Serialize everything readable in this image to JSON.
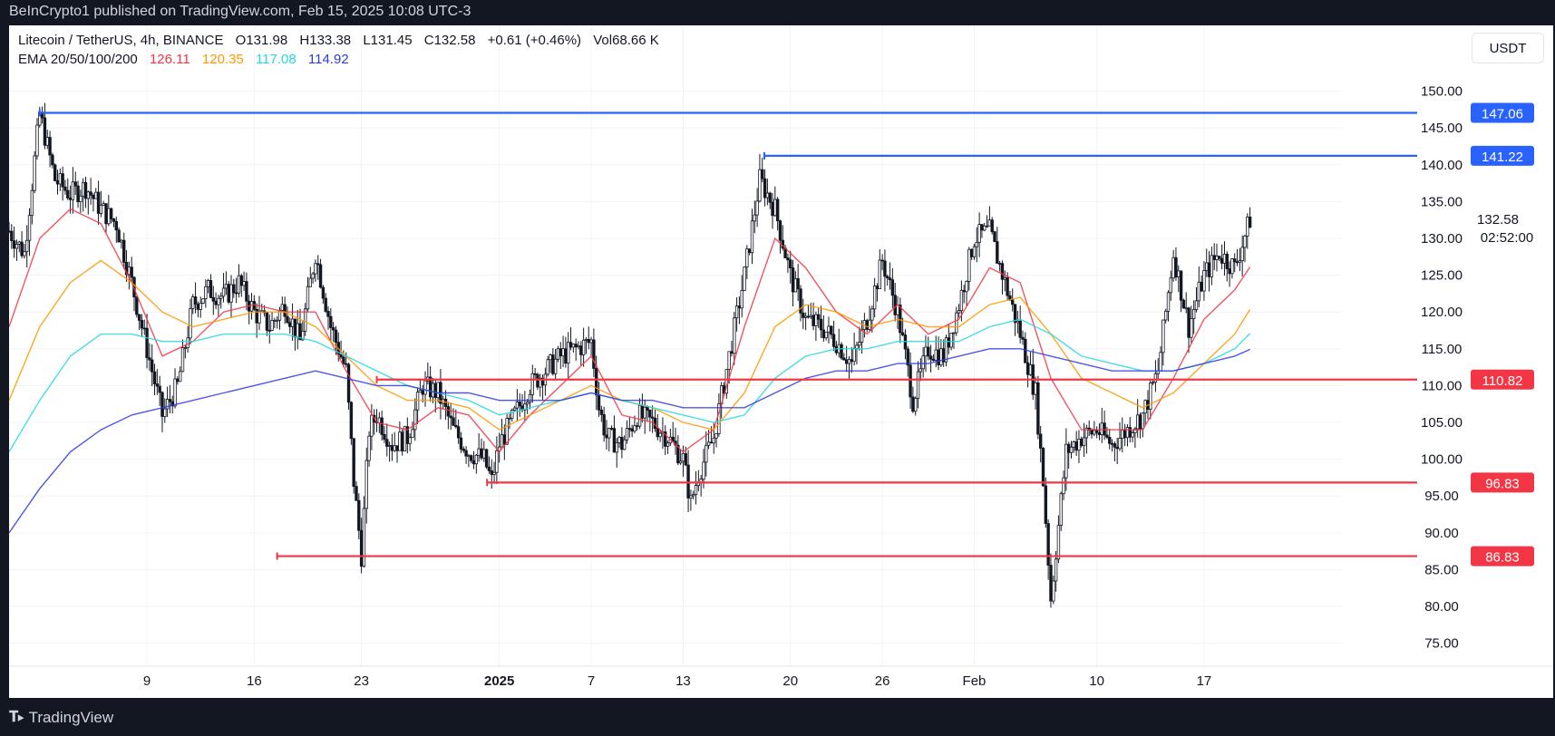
{
  "header": {
    "publish_line": "BeInCrypto1 published on TradingView.com, Feb 15, 2025 10:08 UTC-3"
  },
  "legend": {
    "symbol": "Litecoin / TetherUS, 4h, BINANCE",
    "open_label": "O",
    "open": "131.98",
    "high_label": "H",
    "high": "133.38",
    "low_label": "L",
    "low": "131.45",
    "close_label": "C",
    "close": "132.58",
    "change": "+0.61 (+0.46%)",
    "vol_label": "Vol",
    "vol": "68.66 K",
    "ema_label": "EMA 20/50/100/200",
    "ema20": "126.11",
    "ema50": "120.35",
    "ema100": "117.08",
    "ema200": "114.92"
  },
  "currency_button": "USDT",
  "footer": {
    "brand": "TradingView"
  },
  "colors": {
    "ema20": "#f23645",
    "ema50": "#ff9800",
    "ema100": "#26d7e3",
    "ema200": "#2f3ae0",
    "resistance": "#2962ff",
    "support": "#f23645",
    "candle": "#131722",
    "price_label_bg": "#131722"
  },
  "chart_data": {
    "type": "candlestick",
    "ylim": [
      72,
      155
    ],
    "yticks": [
      "150.00",
      "145.00",
      "140.00",
      "135.00",
      "130.00",
      "125.00",
      "120.00",
      "115.00",
      "110.00",
      "105.00",
      "100.00",
      "95.00",
      "90.00",
      "85.00",
      "80.00",
      "75.00"
    ],
    "x_labels": [
      "9",
      "16",
      "23",
      "2025",
      "7",
      "13",
      "20",
      "26",
      "Feb",
      "10",
      "17"
    ],
    "x_label_days": [
      6,
      13,
      20,
      29,
      35,
      41,
      48,
      54,
      60,
      68,
      75
    ],
    "x_range_days": [
      -3,
      84
    ],
    "last_price": "132.58",
    "countdown": "02:52:00",
    "levels": [
      {
        "label": "147.06",
        "value": 147.06,
        "start_day": -1,
        "color": "#2962ff"
      },
      {
        "label": "141.22",
        "value": 141.22,
        "start_day": 46.3,
        "color": "#2962ff"
      },
      {
        "label": "110.82",
        "value": 110.82,
        "start_day": 21.0,
        "color": "#f23645"
      },
      {
        "label": "96.83",
        "value": 96.83,
        "start_day": 28.2,
        "color": "#f23645"
      },
      {
        "label": "86.83",
        "value": 86.83,
        "start_day": 14.5,
        "color": "#f23645"
      }
    ],
    "price_path": [
      [
        -3,
        131
      ],
      [
        -2,
        128
      ],
      [
        -1,
        147
      ],
      [
        0,
        138
      ],
      [
        1,
        136
      ],
      [
        2,
        137
      ],
      [
        3,
        134
      ],
      [
        4,
        132
      ],
      [
        5,
        124
      ],
      [
        6,
        115
      ],
      [
        7,
        106
      ],
      [
        8,
        110
      ],
      [
        9,
        121
      ],
      [
        10,
        123
      ],
      [
        11,
        122
      ],
      [
        12,
        124
      ],
      [
        13,
        120
      ],
      [
        14,
        118
      ],
      [
        15,
        121
      ],
      [
        16,
        116
      ],
      [
        17,
        128
      ],
      [
        18,
        118
      ],
      [
        19,
        112
      ],
      [
        19.5,
        97
      ],
      [
        20,
        87
      ],
      [
        20.5,
        104
      ],
      [
        21,
        106
      ],
      [
        22,
        102
      ],
      [
        23,
        103
      ],
      [
        24,
        110
      ],
      [
        25,
        109
      ],
      [
        26,
        104
      ],
      [
        27,
        101
      ],
      [
        28,
        100
      ],
      [
        28.5,
        97
      ],
      [
        29,
        102
      ],
      [
        30,
        106
      ],
      [
        31,
        110
      ],
      [
        32,
        112
      ],
      [
        33,
        114
      ],
      [
        34,
        115
      ],
      [
        35,
        116
      ],
      [
        35.5,
        107
      ],
      [
        36,
        103
      ],
      [
        37,
        102
      ],
      [
        38,
        106
      ],
      [
        39,
        105
      ],
      [
        40,
        103
      ],
      [
        41,
        100
      ],
      [
        41.5,
        94
      ],
      [
        42,
        98
      ],
      [
        43,
        103
      ],
      [
        44,
        114
      ],
      [
        45,
        125
      ],
      [
        46,
        138
      ],
      [
        47,
        134
      ],
      [
        48,
        125
      ],
      [
        49,
        119
      ],
      [
        50,
        118
      ],
      [
        51,
        116
      ],
      [
        52,
        113
      ],
      [
        53,
        119
      ],
      [
        54,
        127
      ],
      [
        55,
        120
      ],
      [
        56,
        108
      ],
      [
        57,
        115
      ],
      [
        58,
        114
      ],
      [
        59,
        121
      ],
      [
        60,
        130
      ],
      [
        61,
        131
      ],
      [
        62,
        124
      ],
      [
        63,
        117
      ],
      [
        64,
        109
      ],
      [
        64.5,
        97
      ],
      [
        65,
        81
      ],
      [
        66,
        101
      ],
      [
        67,
        103
      ],
      [
        68,
        104
      ],
      [
        69,
        102
      ],
      [
        70,
        104
      ],
      [
        71,
        106
      ],
      [
        72,
        112
      ],
      [
        73,
        128
      ],
      [
        74,
        118
      ],
      [
        75,
        125
      ],
      [
        76,
        128
      ],
      [
        77,
        126
      ],
      [
        78,
        132.58
      ]
    ],
    "series": [
      {
        "name": "EMA 20",
        "color": "#f23645",
        "points": [
          [
            -3,
            118
          ],
          [
            -1,
            130
          ],
          [
            1,
            134
          ],
          [
            3,
            132
          ],
          [
            5,
            124
          ],
          [
            7,
            114
          ],
          [
            9,
            116
          ],
          [
            11,
            120
          ],
          [
            13,
            121
          ],
          [
            15,
            120
          ],
          [
            17,
            120
          ],
          [
            19,
            112
          ],
          [
            21,
            105
          ],
          [
            23,
            104
          ],
          [
            25,
            107
          ],
          [
            27,
            106
          ],
          [
            29,
            101
          ],
          [
            31,
            106
          ],
          [
            33,
            110
          ],
          [
            35,
            114
          ],
          [
            37,
            106
          ],
          [
            39,
            105
          ],
          [
            41,
            101
          ],
          [
            43,
            104
          ],
          [
            45,
            118
          ],
          [
            47,
            130
          ],
          [
            49,
            126
          ],
          [
            51,
            120
          ],
          [
            53,
            117
          ],
          [
            55,
            121
          ],
          [
            57,
            117
          ],
          [
            59,
            119
          ],
          [
            61,
            126
          ],
          [
            63,
            124
          ],
          [
            65,
            111
          ],
          [
            67,
            104
          ],
          [
            69,
            104
          ],
          [
            71,
            104
          ],
          [
            73,
            111
          ],
          [
            75,
            119
          ],
          [
            77,
            123
          ],
          [
            78,
            126.11
          ]
        ]
      },
      {
        "name": "EMA 50",
        "color": "#ff9800",
        "points": [
          [
            -3,
            108
          ],
          [
            -1,
            118
          ],
          [
            1,
            124
          ],
          [
            3,
            127
          ],
          [
            5,
            124
          ],
          [
            7,
            120
          ],
          [
            9,
            118
          ],
          [
            11,
            119
          ],
          [
            13,
            120
          ],
          [
            15,
            120
          ],
          [
            17,
            118
          ],
          [
            19,
            114
          ],
          [
            21,
            110
          ],
          [
            23,
            108
          ],
          [
            25,
            108
          ],
          [
            27,
            107
          ],
          [
            29,
            104
          ],
          [
            31,
            106
          ],
          [
            33,
            108
          ],
          [
            35,
            110
          ],
          [
            37,
            108
          ],
          [
            39,
            107
          ],
          [
            41,
            105
          ],
          [
            43,
            104
          ],
          [
            45,
            109
          ],
          [
            47,
            118
          ],
          [
            49,
            121
          ],
          [
            51,
            120
          ],
          [
            53,
            118
          ],
          [
            55,
            119
          ],
          [
            57,
            118
          ],
          [
            59,
            118
          ],
          [
            61,
            121
          ],
          [
            63,
            122
          ],
          [
            65,
            117
          ],
          [
            67,
            111
          ],
          [
            69,
            109
          ],
          [
            71,
            107
          ],
          [
            73,
            109
          ],
          [
            75,
            113
          ],
          [
            77,
            117
          ],
          [
            78,
            120.35
          ]
        ]
      },
      {
        "name": "EMA 100",
        "color": "#26d7e3",
        "points": [
          [
            -3,
            101
          ],
          [
            -1,
            108
          ],
          [
            1,
            114
          ],
          [
            3,
            117
          ],
          [
            5,
            117
          ],
          [
            7,
            116
          ],
          [
            9,
            116
          ],
          [
            11,
            117
          ],
          [
            13,
            117
          ],
          [
            15,
            117
          ],
          [
            17,
            116
          ],
          [
            19,
            114
          ],
          [
            21,
            112
          ],
          [
            23,
            110
          ],
          [
            25,
            109
          ],
          [
            27,
            108
          ],
          [
            29,
            106
          ],
          [
            31,
            107
          ],
          [
            33,
            108
          ],
          [
            35,
            109
          ],
          [
            37,
            108
          ],
          [
            39,
            107
          ],
          [
            41,
            106
          ],
          [
            43,
            105
          ],
          [
            45,
            106
          ],
          [
            47,
            111
          ],
          [
            49,
            114
          ],
          [
            51,
            115
          ],
          [
            53,
            115
          ],
          [
            55,
            116
          ],
          [
            57,
            116
          ],
          [
            59,
            116
          ],
          [
            61,
            118
          ],
          [
            63,
            119
          ],
          [
            65,
            117
          ],
          [
            67,
            114
          ],
          [
            69,
            113
          ],
          [
            71,
            112
          ],
          [
            73,
            112
          ],
          [
            75,
            113
          ],
          [
            77,
            115
          ],
          [
            78,
            117.08
          ]
        ]
      },
      {
        "name": "EMA 200",
        "color": "#2f3ae0",
        "points": [
          [
            -3,
            90
          ],
          [
            -1,
            96
          ],
          [
            1,
            101
          ],
          [
            3,
            104
          ],
          [
            5,
            106
          ],
          [
            7,
            107
          ],
          [
            9,
            108
          ],
          [
            11,
            109
          ],
          [
            13,
            110
          ],
          [
            15,
            111
          ],
          [
            17,
            112
          ],
          [
            19,
            111
          ],
          [
            21,
            110
          ],
          [
            23,
            110
          ],
          [
            25,
            109
          ],
          [
            27,
            109
          ],
          [
            29,
            108
          ],
          [
            31,
            108
          ],
          [
            33,
            108
          ],
          [
            35,
            109
          ],
          [
            37,
            108
          ],
          [
            39,
            108
          ],
          [
            41,
            107
          ],
          [
            43,
            107
          ],
          [
            45,
            107
          ],
          [
            47,
            109
          ],
          [
            49,
            111
          ],
          [
            51,
            112
          ],
          [
            53,
            112
          ],
          [
            55,
            113
          ],
          [
            57,
            113
          ],
          [
            59,
            114
          ],
          [
            61,
            115
          ],
          [
            63,
            115
          ],
          [
            65,
            114
          ],
          [
            67,
            113
          ],
          [
            69,
            112
          ],
          [
            71,
            112
          ],
          [
            73,
            112
          ],
          [
            75,
            113
          ],
          [
            77,
            114
          ],
          [
            78,
            114.92
          ]
        ]
      }
    ]
  }
}
